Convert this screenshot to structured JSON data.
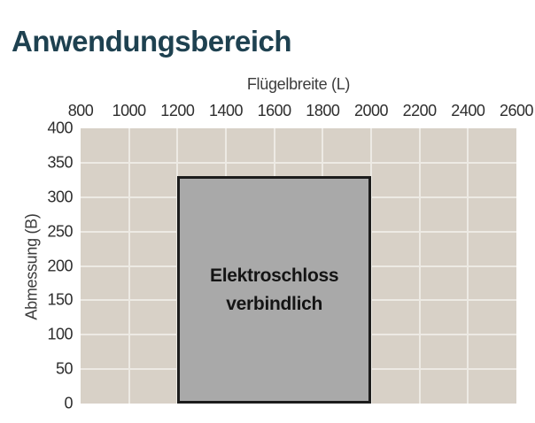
{
  "page_title": "Anwendungsbereich",
  "colors": {
    "title_text": "#1e4150",
    "axis_text": "#3c3c3c",
    "tick_text": "#2e2e2e",
    "plot_background": "#d8d1c7",
    "gridline": "#edeae4",
    "region_fill": "#a9a9a9",
    "region_border": "#1c1c1c",
    "region_text": "#141414",
    "page_background": "#ffffff"
  },
  "chart_data": {
    "type": "area",
    "title": "Anwendungsbereich",
    "xlabel": "Flügelbreite (L)",
    "ylabel": "Abmessung (B)",
    "xlim": [
      800,
      2600
    ],
    "ylim": [
      0,
      400
    ],
    "x_ticks": [
      800,
      1000,
      1200,
      1400,
      1600,
      1800,
      2000,
      2200,
      2400,
      2600
    ],
    "y_ticks": [
      0,
      50,
      100,
      150,
      200,
      250,
      300,
      350,
      400
    ],
    "grid": true,
    "gridlines_vertical": [
      1000,
      1200,
      1400,
      1600,
      1800,
      2000,
      2200,
      2400
    ],
    "gridlines_horizontal": [
      50,
      100,
      150,
      200,
      250,
      300,
      350
    ],
    "legend": "none",
    "region": {
      "label": "Elektroschloss verbindlich",
      "label_lines": [
        "Elektroschloss",
        "verbindlich"
      ],
      "x_range": [
        1200,
        2000
      ],
      "y_range": [
        0,
        330
      ]
    }
  }
}
